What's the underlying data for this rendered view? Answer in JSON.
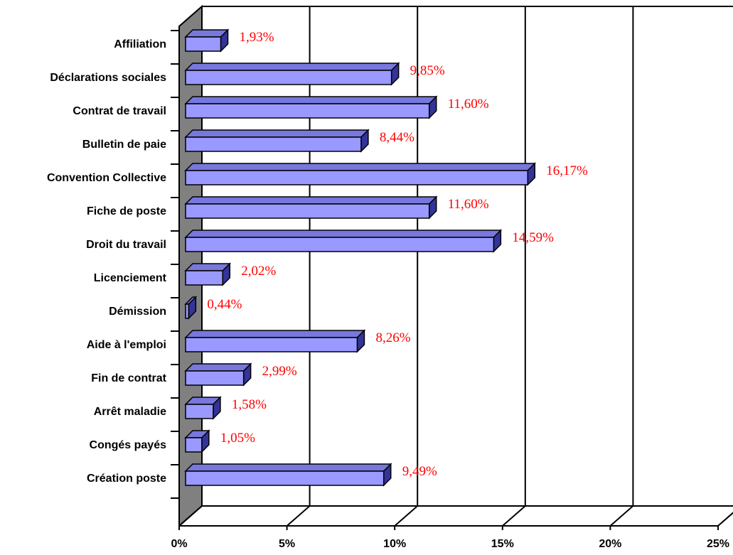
{
  "chart_data": {
    "type": "bar",
    "orientation": "horizontal",
    "style": "3d",
    "categories": [
      "Affiliation",
      "Déclarations sociales",
      "Contrat de travail",
      "Bulletin de paie",
      "Convention Collective",
      "Fiche de poste",
      "Droit du travail",
      "Licenciement",
      "Démission",
      "Aide à l'emploi",
      "Fin de contrat",
      "Arrêt maladie",
      "Congés payés",
      "Création poste"
    ],
    "values": [
      1.93,
      9.85,
      11.6,
      8.44,
      16.17,
      11.6,
      14.59,
      2.02,
      0.44,
      8.26,
      2.99,
      1.58,
      1.05,
      9.49
    ],
    "data_labels": [
      "1,93%",
      "9,85%",
      "11,60%",
      "8,44%",
      "16,17%",
      "11,60%",
      "14,59%",
      "2,02%",
      "0,44%",
      "8,26%",
      "2,99%",
      "1,58%",
      "1,05%",
      "9,49%"
    ],
    "xlim": [
      0,
      25
    ],
    "xticks": [
      0,
      5,
      10,
      15,
      20,
      25
    ],
    "xtick_labels": [
      "0%",
      "5%",
      "10%",
      "15%",
      "20%",
      "25%"
    ],
    "grid": true,
    "legend": "none",
    "colors": {
      "bar_front": "#9999ff",
      "bar_top": "#7777dd",
      "bar_side": "#333399",
      "wall": "#808080",
      "data_label": "#ff0000",
      "grid": "#000000"
    }
  }
}
